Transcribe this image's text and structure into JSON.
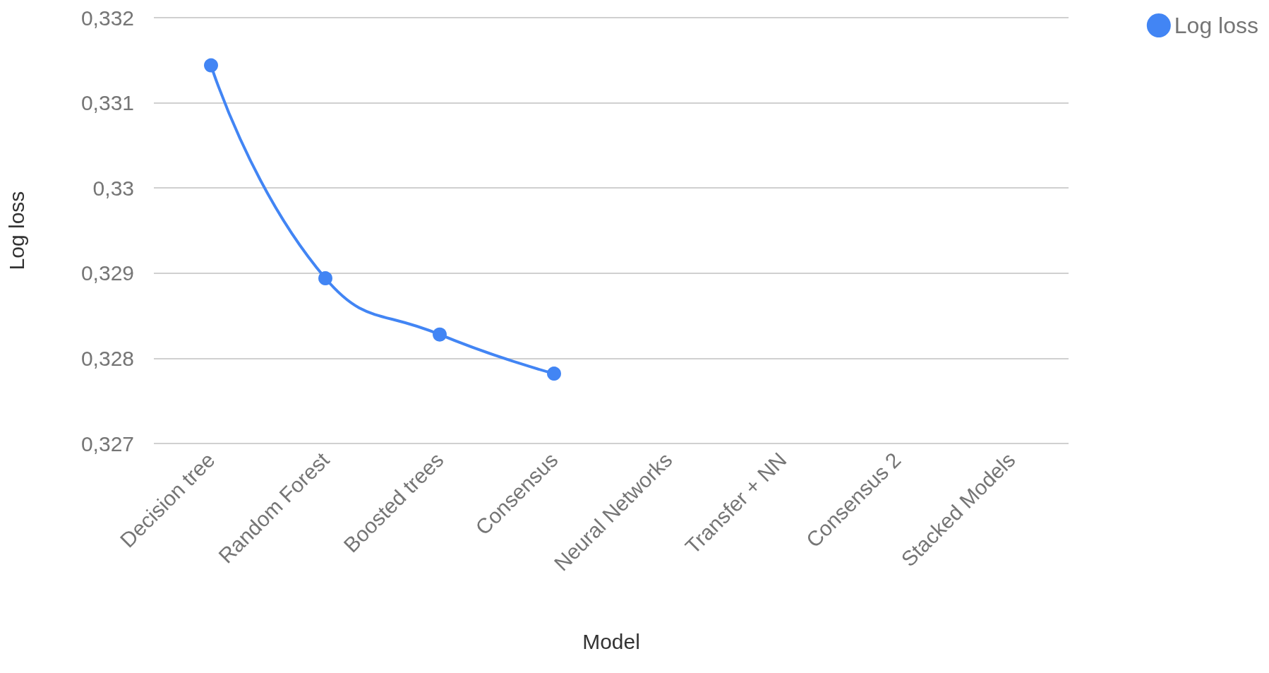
{
  "chart_data": {
    "type": "line",
    "xlabel": "Model",
    "ylabel": "Log loss",
    "categories": [
      "Decision tree",
      "Random Forest",
      "Boosted trees",
      "Consensus",
      "Neural Networks",
      "Transfer + NN",
      "Consensus 2",
      "Stacked Models"
    ],
    "series": [
      {
        "name": "Log loss",
        "color": "#4285f4",
        "values": [
          0.33144,
          0.32894,
          0.32828,
          0.32782,
          null,
          null,
          null,
          null
        ]
      }
    ],
    "ylim": [
      0.327,
      0.332
    ],
    "yticks": [
      {
        "value": 0.327,
        "label": "0,327"
      },
      {
        "value": 0.328,
        "label": "0,328"
      },
      {
        "value": 0.329,
        "label": "0,329"
      },
      {
        "value": 0.33,
        "label": "0,33"
      },
      {
        "value": 0.331,
        "label": "0,331"
      },
      {
        "value": 0.332,
        "label": "0,332"
      }
    ],
    "grid": "y",
    "legend": "top right",
    "marker": "circle",
    "line_style": "solid"
  }
}
